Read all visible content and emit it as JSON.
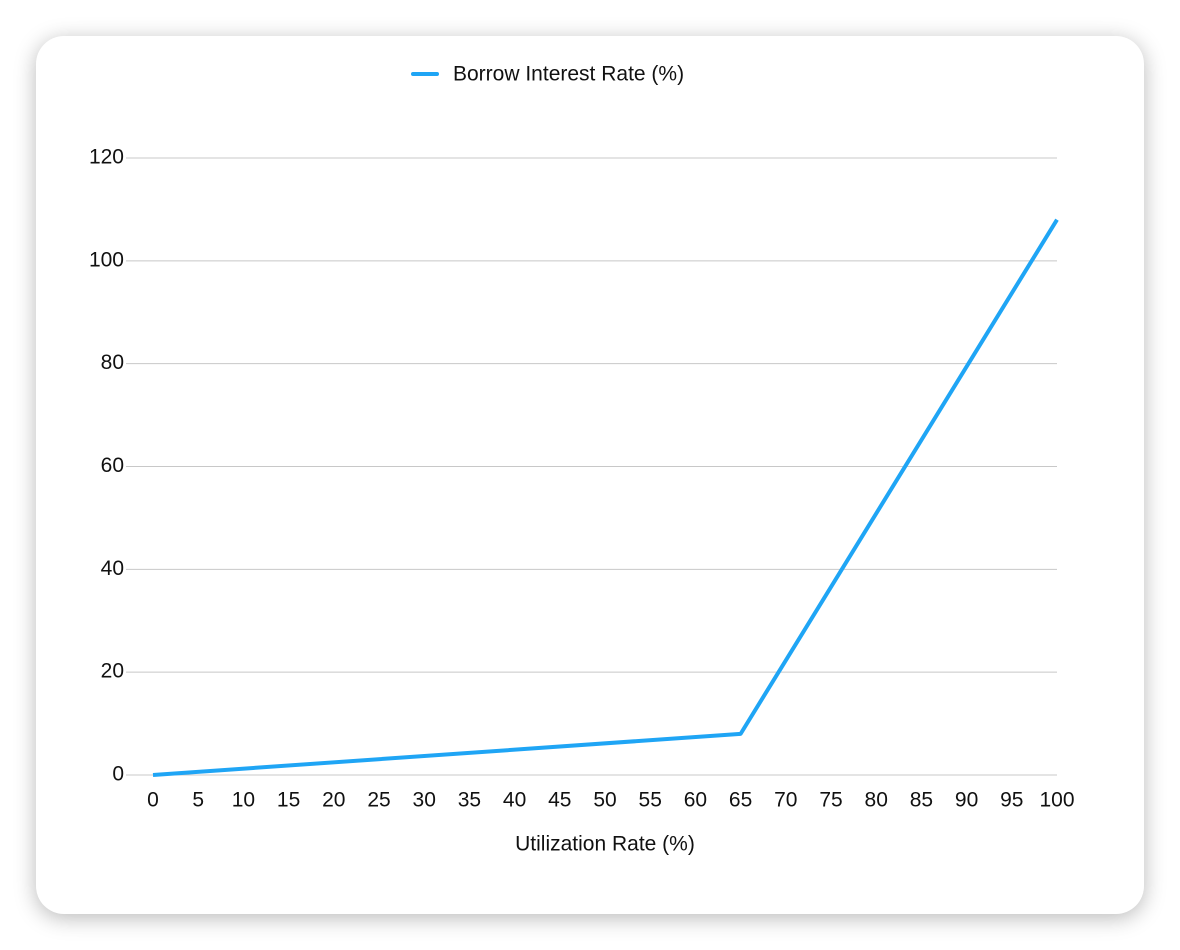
{
  "chart_data": {
    "type": "line",
    "x_label": "Utilization Rate (%)",
    "x": [
      0,
      65,
      100
    ],
    "series": [
      {
        "name": "Borrow Interest Rate (%)",
        "color": "#1fa5f5",
        "values": [
          0,
          8,
          108
        ]
      }
    ],
    "xlim": [
      0,
      100
    ],
    "xticks": [
      0,
      5,
      10,
      15,
      20,
      25,
      30,
      35,
      40,
      45,
      50,
      55,
      60,
      65,
      70,
      75,
      80,
      85,
      90,
      95,
      100
    ],
    "ylim": [
      0,
      120
    ],
    "yticks": [
      0,
      20,
      40,
      60,
      80,
      100,
      120
    ],
    "grid": true,
    "legend": "top"
  }
}
